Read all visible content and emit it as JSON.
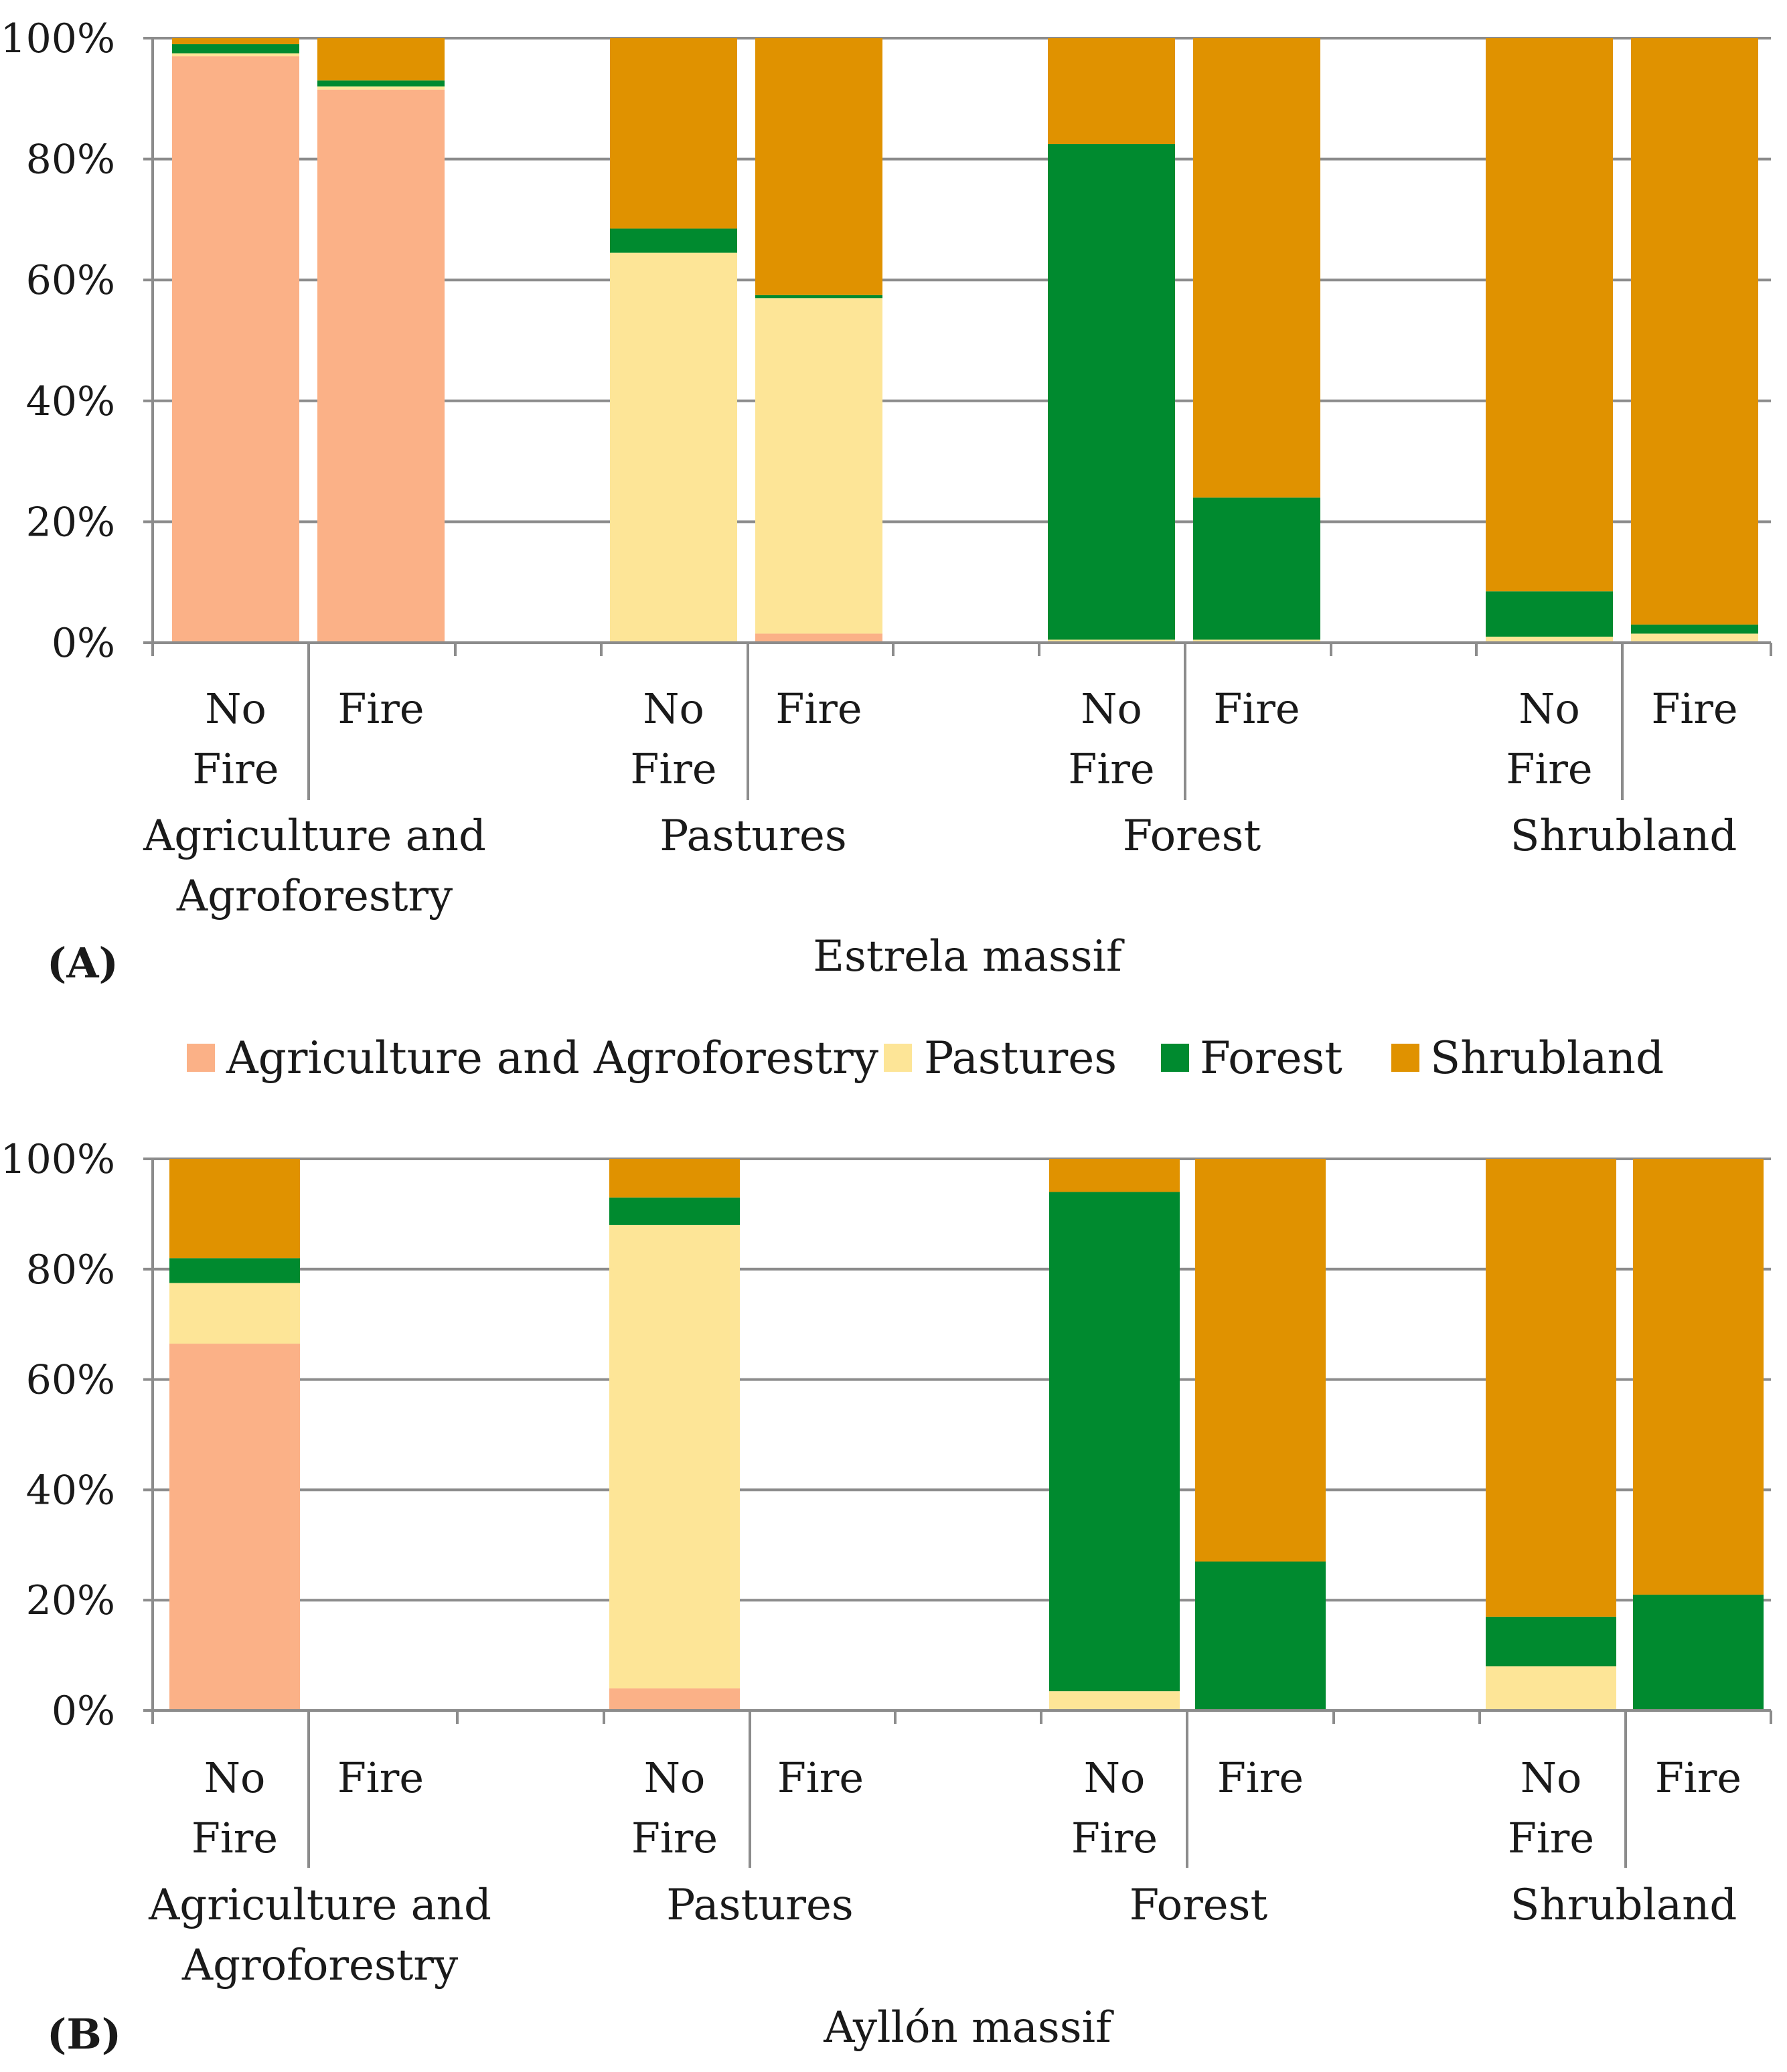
{
  "colors": {
    "Agriculture and Agroforestry": "#fbb187",
    "Pastures": "#fde597",
    "Forest": "#008a2f",
    "Shrubland": "#e09200",
    "grid": "#8c8c8c",
    "axis": "#8c8c8c"
  },
  "legend": {
    "items": [
      {
        "name": "Agriculture and Agroforestry",
        "color": "#fbb187"
      },
      {
        "name": "Pastures",
        "color": "#fde597"
      },
      {
        "name": "Forest",
        "color": "#008a2f"
      },
      {
        "name": "Shrubland",
        "color": "#e09200"
      }
    ]
  },
  "chart_data": [
    {
      "type": "bar",
      "stacked": true,
      "panel": "(A)",
      "title": "Estrela massif",
      "ylim": [
        0,
        100
      ],
      "yticks": [
        "0%",
        "20%",
        "40%",
        "60%",
        "80%",
        "100%"
      ],
      "groups": [
        "Agriculture and Agroforestry",
        "Pastures",
        "Forest",
        "Shrubland"
      ],
      "group_label_lines": [
        [
          "Agriculture and",
          "Agroforestry"
        ],
        [
          "Pastures"
        ],
        [
          "Forest"
        ],
        [
          "Shrubland"
        ]
      ],
      "subcategory_lines": [
        [
          "No",
          "Fire"
        ],
        [
          "Fire"
        ]
      ],
      "categories": [
        "Agriculture and Agroforestry - No Fire",
        "Agriculture and Agroforestry - Fire",
        "Pastures - No Fire",
        "Pastures - Fire",
        "Forest - No Fire",
        "Forest - Fire",
        "Shrubland - No Fire",
        "Shrubland - Fire"
      ],
      "series": [
        {
          "name": "Agriculture and Agroforestry",
          "values": [
            97,
            91.5,
            0,
            1.5,
            0,
            0,
            0,
            0
          ]
        },
        {
          "name": "Pastures",
          "values": [
            0.5,
            0.5,
            64.5,
            55.5,
            0.5,
            0.5,
            1,
            1.5
          ]
        },
        {
          "name": "Forest",
          "values": [
            1.5,
            1,
            4,
            0.5,
            82,
            23.5,
            7.5,
            1.5
          ]
        },
        {
          "name": "Shrubland",
          "values": [
            1,
            7,
            31.5,
            42.5,
            17.5,
            76,
            91.5,
            97
          ]
        }
      ]
    },
    {
      "type": "bar",
      "stacked": true,
      "panel": "(B)",
      "title": "Ayllón massif",
      "ylim": [
        0,
        100
      ],
      "yticks": [
        "0%",
        "20%",
        "40%",
        "60%",
        "80%",
        "100%"
      ],
      "groups": [
        "Agriculture and Agroforestry",
        "Pastures",
        "Forest",
        "Shrubland"
      ],
      "group_label_lines": [
        [
          "Agriculture and",
          "Agroforestry"
        ],
        [
          "Pastures"
        ],
        [
          "Forest"
        ],
        [
          "Shrubland"
        ]
      ],
      "subcategory_lines": [
        [
          "No",
          "Fire"
        ],
        [
          "Fire"
        ]
      ],
      "categories": [
        "Agriculture and Agroforestry - No Fire",
        "Agriculture and Agroforestry - Fire",
        "Pastures - No Fire",
        "Pastures - Fire",
        "Forest - No Fire",
        "Forest - Fire",
        "Shrubland - No Fire",
        "Shrubland - Fire"
      ],
      "series": [
        {
          "name": "Agriculture and Agroforestry",
          "values": [
            66.5,
            0,
            4,
            0,
            0,
            0,
            0,
            0
          ]
        },
        {
          "name": "Pastures",
          "values": [
            11,
            0,
            84,
            0,
            3.5,
            0,
            8,
            0
          ]
        },
        {
          "name": "Forest",
          "values": [
            4.5,
            0,
            5,
            0,
            90.5,
            27,
            9,
            21
          ]
        },
        {
          "name": "Shrubland",
          "values": [
            18,
            0,
            7,
            0,
            6,
            73,
            83,
            79
          ]
        }
      ]
    }
  ]
}
